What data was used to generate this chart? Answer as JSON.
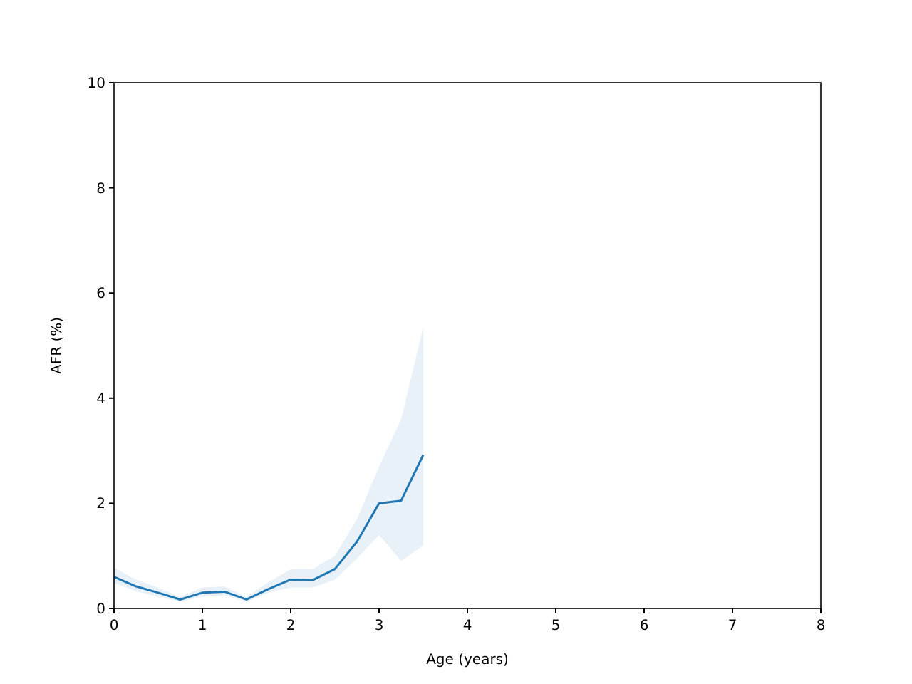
{
  "chart_data": {
    "type": "line",
    "xlabel": "Age (years)",
    "ylabel": "AFR (%)",
    "xlim": [
      0,
      8
    ],
    "ylim": [
      0,
      10
    ],
    "xticks": [
      0,
      1,
      2,
      3,
      4,
      5,
      6,
      7,
      8
    ],
    "yticks": [
      0,
      2,
      4,
      6,
      8,
      10
    ],
    "grid": false,
    "series": [
      {
        "color": "#1f77b4",
        "x": [
          0,
          0.25,
          0.5,
          0.75,
          1,
          1.25,
          1.5,
          1.75,
          2,
          2.25,
          2.5,
          2.75,
          3,
          3.25,
          3.5
        ],
        "values": [
          0.6,
          0.42,
          0.3,
          0.17,
          0.3,
          0.32,
          0.17,
          0.37,
          0.55,
          0.54,
          0.75,
          1.27,
          2.0,
          2.05,
          2.92
        ],
        "lower": [
          0.48,
          0.33,
          0.22,
          0.13,
          0.22,
          0.25,
          0.13,
          0.3,
          0.4,
          0.4,
          0.55,
          0.95,
          1.4,
          0.9,
          1.2
        ],
        "upper": [
          0.78,
          0.55,
          0.4,
          0.22,
          0.4,
          0.42,
          0.22,
          0.5,
          0.75,
          0.75,
          1.0,
          1.7,
          2.7,
          3.6,
          5.35
        ]
      }
    ]
  }
}
